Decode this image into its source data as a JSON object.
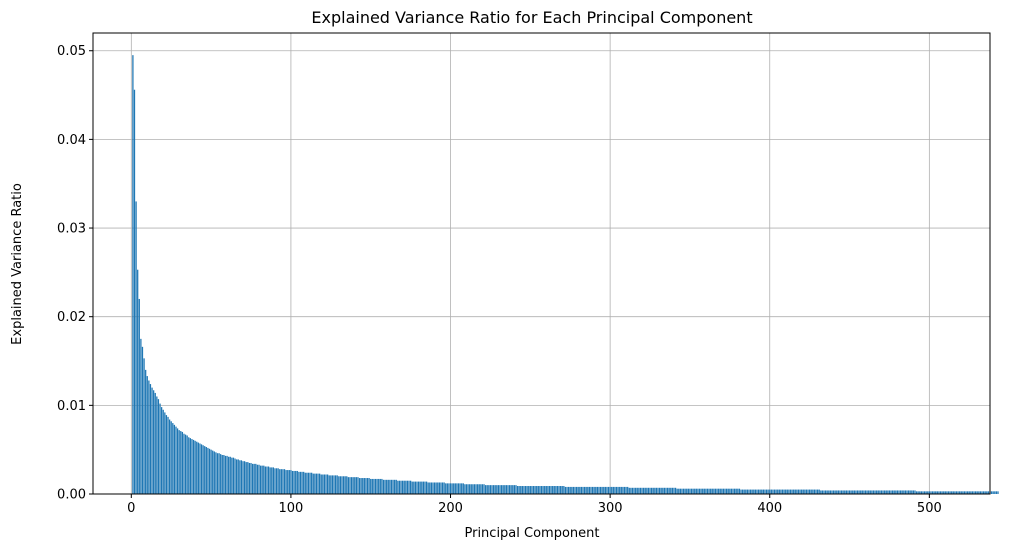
{
  "chart_data": {
    "type": "bar",
    "title": "Explained Variance Ratio for Each Principal Component",
    "xlabel": "Principal Component",
    "ylabel": "Explained Variance Ratio",
    "xlim": [
      -24,
      538
    ],
    "ylim": [
      0,
      0.052
    ],
    "x_ticks": [
      0,
      100,
      200,
      300,
      400,
      500
    ],
    "x_tick_labels": [
      "0",
      "100",
      "200",
      "300",
      "400",
      "500"
    ],
    "y_ticks": [
      0,
      0.01,
      0.02,
      0.03,
      0.04,
      0.05
    ],
    "y_tick_labels": [
      "0.00",
      "0.01",
      "0.02",
      "0.03",
      "0.04",
      "0.05"
    ],
    "grid": true,
    "bar_color": "#1f77b4",
    "grid_color": "#b0b0b0",
    "series": [
      {
        "x_start": 1,
        "values": [
          0.0495,
          0.0456,
          0.033,
          0.0253,
          0.022,
          0.0175,
          0.0166,
          0.0153,
          0.014,
          0.0133,
          0.0128,
          0.0124,
          0.012,
          0.0117,
          0.0114,
          0.011,
          0.0107,
          0.0102,
          0.0098,
          0.0095,
          0.0092,
          0.0089,
          0.0087,
          0.0084,
          0.0082,
          0.008,
          0.0078,
          0.0076,
          0.0074,
          0.0072,
          0.0071,
          0.007,
          0.0068,
          0.0067,
          0.0066,
          0.0064,
          0.0063,
          0.0062,
          0.0061,
          0.006,
          0.0059,
          0.0058,
          0.0057,
          0.0056,
          0.0055,
          0.0054,
          0.0053,
          0.0052,
          0.0051,
          0.005,
          0.0049,
          0.0048,
          0.0047,
          0.0046,
          0.0046,
          0.0045,
          0.0044,
          0.0044,
          0.0043,
          0.0043,
          0.0042,
          0.0042,
          0.0041,
          0.0041,
          0.004,
          0.0039,
          0.0039,
          0.0038,
          0.0038,
          0.0037,
          0.0037,
          0.0036,
          0.0036,
          0.0035,
          0.0035,
          0.0034,
          0.0034,
          0.0034,
          0.0033,
          0.0033,
          0.0032,
          0.0032,
          0.0032,
          0.0031,
          0.0031,
          0.0031,
          0.003,
          0.003,
          0.003,
          0.0029,
          0.0029,
          0.0029,
          0.0028,
          0.0028,
          0.0028,
          0.0028,
          0.0027,
          0.0027,
          0.0027,
          0.0027,
          0.0026,
          0.0026,
          0.0026,
          0.0026,
          0.0025,
          0.0025,
          0.0025,
          0.0025,
          0.0024,
          0.0024,
          0.0024,
          0.0024,
          0.0024,
          0.0023,
          0.0023,
          0.0023,
          0.0023,
          0.0023,
          0.0022,
          0.0022,
          0.0022,
          0.0022,
          0.0022,
          0.0021,
          0.0021,
          0.0021,
          0.0021,
          0.0021,
          0.0021,
          0.002,
          0.002,
          0.002,
          0.002,
          0.002,
          0.002,
          0.0019,
          0.0019,
          0.0019,
          0.0019,
          0.0019,
          0.0019,
          0.0019,
          0.0018,
          0.0018,
          0.0018,
          0.0018,
          0.0018,
          0.0018,
          0.0018,
          0.0017,
          0.0017,
          0.0017,
          0.0017,
          0.0017,
          0.0017,
          0.0017,
          0.0017,
          0.0016,
          0.0016,
          0.0016,
          0.0016,
          0.0016,
          0.0016,
          0.0016,
          0.0016,
          0.0016,
          0.0015,
          0.0015,
          0.0015,
          0.0015,
          0.0015,
          0.0015,
          0.0015,
          0.0015,
          0.0015,
          0.0014,
          0.0014,
          0.0014,
          0.0014,
          0.0014,
          0.0014,
          0.0014,
          0.0014,
          0.0014,
          0.0014,
          0.0013,
          0.0013,
          0.0013,
          0.0013,
          0.0013,
          0.0013,
          0.0013,
          0.0013,
          0.0013,
          0.0013,
          0.0013,
          0.0012,
          0.0012,
          0.0012,
          0.0012,
          0.0012,
          0.0012,
          0.0012,
          0.0012,
          0.0012,
          0.0012,
          0.0012,
          0.0012,
          0.0011,
          0.0011,
          0.0011,
          0.0011,
          0.0011,
          0.0011,
          0.0011,
          0.0011,
          0.0011,
          0.0011,
          0.0011,
          0.0011,
          0.0011,
          0.001,
          0.001,
          0.001,
          0.001,
          0.001,
          0.001,
          0.001,
          0.001,
          0.001,
          0.001,
          0.001,
          0.001,
          0.001,
          0.001,
          0.001,
          0.001,
          0.001,
          0.001,
          0.001,
          0.001,
          0.0009,
          0.0009,
          0.0009,
          0.0009,
          0.0009,
          0.0009,
          0.0009,
          0.0009,
          0.0009,
          0.0009,
          0.0009,
          0.0009,
          0.0009,
          0.0009,
          0.0009,
          0.0009,
          0.0009,
          0.0009,
          0.0009,
          0.0009,
          0.0009,
          0.0009,
          0.0009,
          0.0009,
          0.0009,
          0.0009,
          0.0009,
          0.0009,
          0.0009,
          0.0009,
          0.0008,
          0.0008,
          0.0008,
          0.0008,
          0.0008,
          0.0008,
          0.0008,
          0.0008,
          0.0008,
          0.0008,
          0.0008,
          0.0008,
          0.0008,
          0.0008,
          0.0008,
          0.0008,
          0.0008,
          0.0008,
          0.0008,
          0.0008,
          0.0008,
          0.0008,
          0.0008,
          0.0008,
          0.0008,
          0.0008,
          0.0008,
          0.0008,
          0.0008,
          0.0008,
          0.0008,
          0.0008,
          0.0008,
          0.0008,
          0.0008,
          0.0008,
          0.0008,
          0.0008,
          0.0008,
          0.0008,
          0.0007,
          0.0007,
          0.0007,
          0.0007,
          0.0007,
          0.0007,
          0.0007,
          0.0007,
          0.0007,
          0.0007,
          0.0007,
          0.0007,
          0.0007,
          0.0007,
          0.0007,
          0.0007,
          0.0007,
          0.0007,
          0.0007,
          0.0007,
          0.0007,
          0.0007,
          0.0007,
          0.0007,
          0.0007,
          0.0007,
          0.0007,
          0.0007,
          0.0007,
          0.0007,
          0.0006,
          0.0006,
          0.0006,
          0.0006,
          0.0006,
          0.0006,
          0.0006,
          0.0006,
          0.0006,
          0.0006,
          0.0006,
          0.0006,
          0.0006,
          0.0006,
          0.0006,
          0.0006,
          0.0006,
          0.0006,
          0.0006,
          0.0006,
          0.0006,
          0.0006,
          0.0006,
          0.0006,
          0.0006,
          0.0006,
          0.0006,
          0.0006,
          0.0006,
          0.0006,
          0.0006,
          0.0006,
          0.0006,
          0.0006,
          0.0006,
          0.0006,
          0.0006,
          0.0006,
          0.0006,
          0.0006,
          0.0005,
          0.0005,
          0.0005,
          0.0005,
          0.0005,
          0.0005,
          0.0005,
          0.0005,
          0.0005,
          0.0005,
          0.0005,
          0.0005,
          0.0005,
          0.0005,
          0.0005,
          0.0005,
          0.0005,
          0.0005,
          0.0005,
          0.0005,
          0.0005,
          0.0005,
          0.0005,
          0.0005,
          0.0005,
          0.0005,
          0.0005,
          0.0005,
          0.0005,
          0.0005,
          0.0005,
          0.0005,
          0.0005,
          0.0005,
          0.0005,
          0.0005,
          0.0005,
          0.0005,
          0.0005,
          0.0005,
          0.0005,
          0.0005,
          0.0005,
          0.0005,
          0.0005,
          0.0005,
          0.0005,
          0.0005,
          0.0005,
          0.0005,
          0.0004,
          0.0004,
          0.0004,
          0.0004,
          0.0004,
          0.0004,
          0.0004,
          0.0004,
          0.0004,
          0.0004,
          0.0004,
          0.0004,
          0.0004,
          0.0004,
          0.0004,
          0.0004,
          0.0004,
          0.0004,
          0.0004,
          0.0004,
          0.0004,
          0.0004,
          0.0004,
          0.0004,
          0.0004,
          0.0004,
          0.0004,
          0.0004,
          0.0004,
          0.0004,
          0.0004,
          0.0004,
          0.0004,
          0.0004,
          0.0004,
          0.0004,
          0.0004,
          0.0004,
          0.0004,
          0.0004,
          0.0004,
          0.0004,
          0.0004,
          0.0004,
          0.0004,
          0.0004,
          0.0004,
          0.0004,
          0.0004,
          0.0004,
          0.0004,
          0.0004,
          0.0004,
          0.0004,
          0.0004,
          0.0004,
          0.0004,
          0.0004,
          0.0004,
          0.0004,
          0.0003,
          0.0003,
          0.0003,
          0.0003,
          0.0003,
          0.0003,
          0.0003,
          0.0003,
          0.0003,
          0.0003,
          0.0003,
          0.0003,
          0.0003,
          0.0003,
          0.0003,
          0.0003,
          0.0003,
          0.0003,
          0.0003,
          0.0003,
          0.0003,
          0.0003,
          0.0003,
          0.0003,
          0.0003,
          0.0003,
          0.0003,
          0.0003,
          0.0003,
          0.0003,
          0.0003,
          0.0003,
          0.0003,
          0.0003,
          0.0003,
          0.0003,
          0.0003,
          0.0003,
          0.0003,
          0.0003,
          0.0003,
          0.0003,
          0.0003,
          0.0003,
          0.0003,
          0.0003,
          0.0003,
          0.0003,
          0.0003,
          0.0003,
          0.0003,
          0.0003
        ]
      }
    ]
  }
}
